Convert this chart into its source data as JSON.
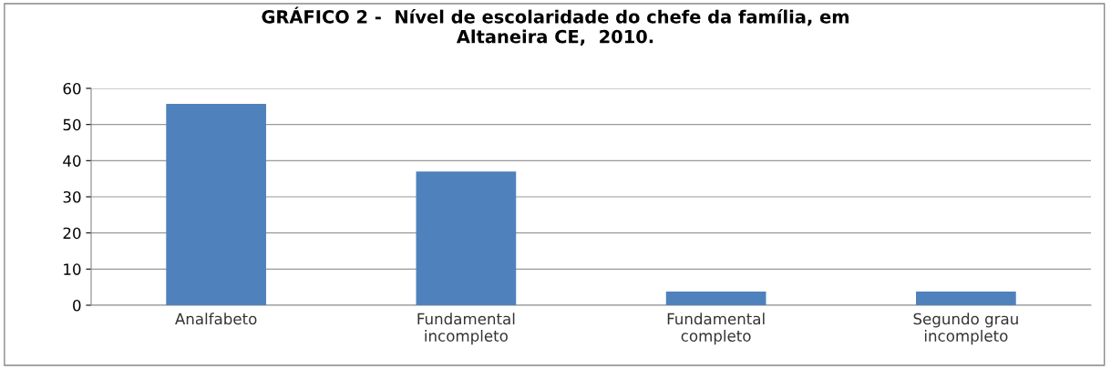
{
  "chart_data": {
    "type": "bar",
    "title": "GRÁFICO 2 -  Nível de escolaridade do chefe da família, em\nAltaneira CE,  2010.",
    "categories": [
      "Analfabeto",
      "Fundamental\nincompleto",
      "Fundamental\ncompleto",
      "Segundo grau\nincompleto"
    ],
    "values": [
      55.7,
      37.0,
      3.8,
      3.8
    ],
    "color": "#4f81bd",
    "ylim": [
      0,
      60
    ],
    "yticks": [
      0,
      10,
      20,
      30,
      40,
      50,
      60
    ],
    "grid": "y",
    "legend": false
  }
}
